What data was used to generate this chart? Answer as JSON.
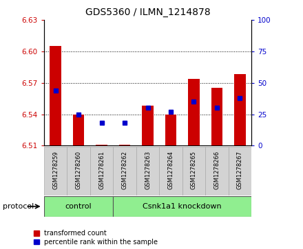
{
  "title": "GDS5360 / ILMN_1214878",
  "samples": [
    "GSM1278259",
    "GSM1278260",
    "GSM1278261",
    "GSM1278262",
    "GSM1278263",
    "GSM1278264",
    "GSM1278265",
    "GSM1278266",
    "GSM1278267"
  ],
  "red_values": [
    6.605,
    6.54,
    6.511,
    6.511,
    6.548,
    6.54,
    6.574,
    6.565,
    6.578
  ],
  "blue_percentiles": [
    44,
    25,
    18,
    18,
    30,
    27,
    35,
    30,
    38
  ],
  "red_base": 6.51,
  "ylim_left": [
    6.51,
    6.63
  ],
  "ylim_right": [
    0,
    100
  ],
  "yticks_left": [
    6.51,
    6.54,
    6.57,
    6.6,
    6.63
  ],
  "yticks_right": [
    0,
    25,
    50,
    75,
    100
  ],
  "control_count": 3,
  "group_labels": [
    "control",
    "Csnk1a1 knockdown"
  ],
  "protocol_label": "protocol",
  "red_color": "#cc0000",
  "blue_color": "#0000cc",
  "green_color": "#90ee90",
  "gray_color": "#d3d3d3",
  "bar_width": 0.5,
  "figsize": [
    4.4,
    3.63
  ],
  "dpi": 100
}
